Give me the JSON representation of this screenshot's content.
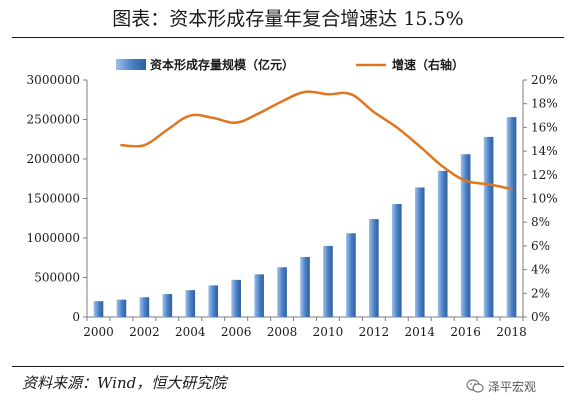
{
  "title": "图表：资本形成存量年复合增速达 15.5%",
  "source": "资料来源：Wind，恒大研究院",
  "watermark": "泽平宏观",
  "colors": {
    "bar": "#4a7fc3",
    "bar_light": "#9cc0ea",
    "line": "#e0761f",
    "axis": "#7f7f7f",
    "text": "#1a1a1a"
  },
  "chart_data": {
    "type": "bar",
    "x": [
      2000,
      2001,
      2002,
      2003,
      2004,
      2005,
      2006,
      2007,
      2008,
      2009,
      2010,
      2011,
      2012,
      2013,
      2014,
      2015,
      2016,
      2017,
      2018
    ],
    "x_tick_labels": [
      "2000",
      "2002",
      "2004",
      "2006",
      "2008",
      "2010",
      "2012",
      "2014",
      "2016",
      "2018"
    ],
    "series": [
      {
        "name": "资本形成存量规模（亿元）",
        "type": "bar",
        "axis": "left",
        "values": [
          200000,
          220000,
          250000,
          290000,
          340000,
          400000,
          470000,
          540000,
          630000,
          760000,
          900000,
          1060000,
          1240000,
          1430000,
          1640000,
          1850000,
          2060000,
          2280000,
          2530000
        ]
      },
      {
        "name": "增速（右轴）",
        "type": "line",
        "axis": "right",
        "values": [
          null,
          14.5,
          14.5,
          15.8,
          17.0,
          16.8,
          16.4,
          17.2,
          18.2,
          19.0,
          18.8,
          18.8,
          17.3,
          16.0,
          14.4,
          12.7,
          11.5,
          11.2,
          10.8
        ]
      }
    ],
    "y_left": {
      "min": 0,
      "max": 3000000,
      "tick_labels": [
        "0",
        "500000",
        "1000000",
        "1500000",
        "2000000",
        "2500000",
        "3000000"
      ]
    },
    "y_right": {
      "min": 0,
      "max": 20,
      "tick_labels": [
        "0%",
        "2%",
        "4%",
        "6%",
        "8%",
        "10%",
        "12%",
        "14%",
        "16%",
        "18%",
        "20%"
      ]
    },
    "grid": false,
    "legend_position": "top-center"
  }
}
